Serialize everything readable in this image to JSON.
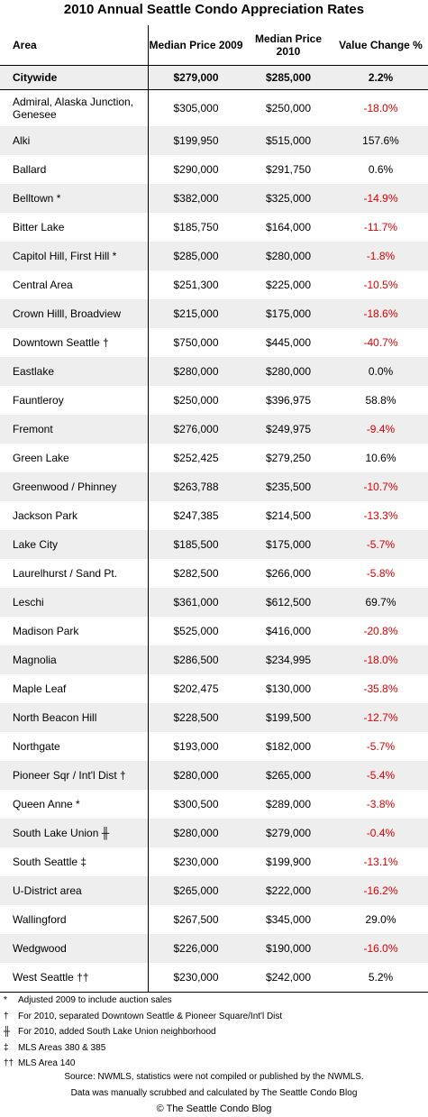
{
  "title": "2010 Annual Seattle Condo Appreciation Rates",
  "header": [
    "Area",
    "Median Price 2009",
    "Median Price 2010",
    "Value Change %"
  ],
  "summary": [
    "Citywide",
    "$279,000",
    "$285,000",
    "2.2%"
  ],
  "rows": [
    [
      "Admiral, Alaska Junction, Genesee",
      "$305,000",
      "$250,000",
      "-18.0%"
    ],
    [
      "Alki",
      "$199,950",
      "$515,000",
      "157.6%"
    ],
    [
      "Ballard",
      "$290,000",
      "$291,750",
      "0.6%"
    ],
    [
      "Belltown *",
      "$382,000",
      "$325,000",
      "-14.9%"
    ],
    [
      "Bitter Lake",
      "$185,750",
      "$164,000",
      "-11.7%"
    ],
    [
      "Capitol Hill, First Hill *",
      "$285,000",
      "$280,000",
      "-1.8%"
    ],
    [
      "Central Area",
      "$251,300",
      "$225,000",
      "-10.5%"
    ],
    [
      "Crown Hilll, Broadview",
      "$215,000",
      "$175,000",
      "-18.6%"
    ],
    [
      "Downtown Seattle †",
      "$750,000",
      "$445,000",
      "-40.7%"
    ],
    [
      "Eastlake",
      "$280,000",
      "$280,000",
      "0.0%"
    ],
    [
      "Fauntleroy",
      "$250,000",
      "$396,975",
      "58.8%"
    ],
    [
      "Fremont",
      "$276,000",
      "$249,975",
      "-9.4%"
    ],
    [
      "Green Lake",
      "$252,425",
      "$279,250",
      "10.6%"
    ],
    [
      "Greenwood / Phinney",
      "$263,788",
      "$235,500",
      "-10.7%"
    ],
    [
      "Jackson Park",
      "$247,385",
      "$214,500",
      "-13.3%"
    ],
    [
      "Lake City",
      "$185,500",
      "$175,000",
      "-5.7%"
    ],
    [
      "Laurelhurst / Sand Pt.",
      "$282,500",
      "$266,000",
      "-5.8%"
    ],
    [
      "Leschi",
      "$361,000",
      "$612,500",
      "69.7%"
    ],
    [
      "Madison Park",
      "$525,000",
      "$416,000",
      "-20.8%"
    ],
    [
      "Magnolia",
      "$286,500",
      "$234,995",
      "-18.0%"
    ],
    [
      "Maple Leaf",
      "$202,475",
      "$130,000",
      "-35.8%"
    ],
    [
      "North Beacon Hill",
      "$228,500",
      "$199,500",
      "-12.7%"
    ],
    [
      "Northgate",
      "$193,000",
      "$182,000",
      "-5.7%"
    ],
    [
      "Pioneer Sqr / Int'l Dist †",
      "$280,000",
      "$265,000",
      "-5.4%"
    ],
    [
      "Queen Anne *",
      "$300,500",
      "$289,000",
      "-3.8%"
    ],
    [
      "South Lake Union ╫",
      "$280,000",
      "$279,000",
      "-0.4%"
    ],
    [
      "South Seattle ‡",
      "$230,000",
      "$199,900",
      "-13.1%"
    ],
    [
      "U-District area",
      "$265,000",
      "$222,000",
      "-16.2%"
    ],
    [
      "Wallingford",
      "$267,500",
      "$345,000",
      "29.0%"
    ],
    [
      "Wedgwood",
      "$226,000",
      "$190,000",
      "-16.0%"
    ],
    [
      "West Seattle ††",
      "$230,000",
      "$242,000",
      "5.2%"
    ]
  ],
  "footnotes": [
    [
      "*",
      "Adjusted 2009 to include auction sales"
    ],
    [
      "†",
      "For 2010, separated Downtown Seattle & Pioneer Square/Int'l Dist"
    ],
    [
      "╫",
      "For 2010, added South Lake Union neighborhood"
    ],
    [
      "‡",
      "MLS Areas 380 & 385"
    ],
    [
      "††",
      "MLS Area 140"
    ]
  ],
  "source": [
    "Source:  NWMLS, statistics were not compiled or published by the NWMLS.",
    "Data was manually scrubbed and calculated by The Seattle Condo Blog",
    "© The Seattle Condo Blog"
  ]
}
